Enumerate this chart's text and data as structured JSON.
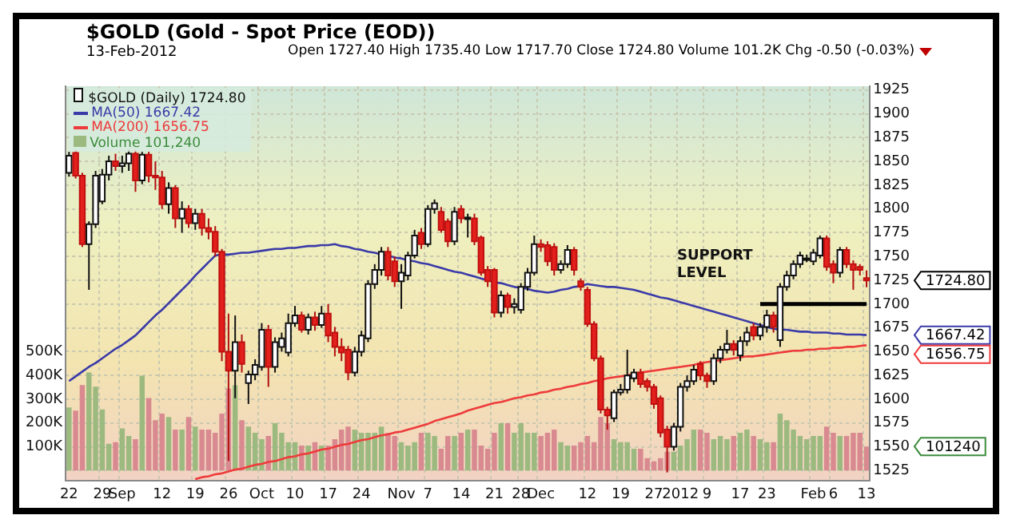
{
  "chart_data": {
    "type": "candlestick",
    "title": "$GOLD (Gold - Spot Price (EOD))",
    "subtitle": "Open 1727.40 High 1735.40 Low 1717.70 Close 1724.80 Volume 101.2K Chg -0.50 (-0.03%)",
    "annotations": [
      "13-Feb-2012",
      "SUPPORT LEVEL",
      "1724.80",
      "1667.42",
      "1656.75",
      "101240"
    ],
    "categories": [
      "22",
      null,
      null,
      null,
      null,
      "29",
      null,
      null,
      "Sep",
      null,
      null,
      null,
      null,
      null,
      "12",
      null,
      null,
      null,
      null,
      "19",
      null,
      null,
      null,
      null,
      "26",
      null,
      null,
      null,
      null,
      "Oct",
      null,
      null,
      null,
      null,
      "10",
      null,
      null,
      null,
      null,
      "17",
      null,
      null,
      null,
      null,
      "24",
      null,
      null,
      null,
      null,
      null,
      "Nov",
      null,
      null,
      null,
      "7",
      null,
      null,
      null,
      null,
      "14",
      null,
      null,
      null,
      null,
      "21",
      null,
      null,
      null,
      "28",
      null,
      null,
      "Dec",
      null,
      null,
      null,
      null,
      null,
      null,
      "12",
      null,
      null,
      null,
      null,
      "19",
      null,
      null,
      null,
      null,
      "27",
      null,
      null,
      null,
      "2012",
      null,
      null,
      null,
      "9",
      null,
      null,
      null,
      null,
      "17",
      null,
      null,
      null,
      "23",
      null,
      null,
      null,
      null,
      null,
      null,
      "Feb",
      null,
      null,
      "6",
      null,
      null,
      null,
      null,
      "13"
    ],
    "ylim": [
      1514,
      1929
    ],
    "yticks": [
      1525,
      1550,
      1575,
      1600,
      1625,
      1650,
      1675,
      1700,
      1725,
      1750,
      1775,
      1800,
      1825,
      1850,
      1875,
      1900,
      1925
    ],
    "y2lim": [
      -44,
      1616
    ],
    "y2ticks": [
      {
        "value": 100,
        "label": "100K"
      },
      {
        "value": 200,
        "label": "200K"
      },
      {
        "value": 300,
        "label": "300K"
      },
      {
        "value": 400,
        "label": "400K"
      },
      {
        "value": 500,
        "label": "500K"
      }
    ],
    "grid": true,
    "legend": "top left",
    "series": [
      {
        "name": "$GOLD (Daily) 1724.80",
        "ohlc": [
          [
            1838,
            1860,
            1834,
            1856
          ],
          [
            1859,
            1862,
            1832,
            1835
          ],
          [
            1835,
            1838,
            1760,
            1763
          ],
          [
            1763,
            1787,
            1715,
            1784
          ],
          [
            1784,
            1840,
            1780,
            1835
          ],
          [
            1808,
            1842,
            1805,
            1836
          ],
          [
            1836,
            1856,
            1830,
            1850
          ],
          [
            1850,
            1858,
            1840,
            1845
          ],
          [
            1845,
            1856,
            1838,
            1848
          ],
          [
            1848,
            1862,
            1840,
            1858
          ],
          [
            1858,
            1862,
            1818,
            1830
          ],
          [
            1830,
            1860,
            1826,
            1857
          ],
          [
            1857,
            1860,
            1828,
            1835
          ],
          [
            1835,
            1850,
            1820,
            1833
          ],
          [
            1833,
            1840,
            1800,
            1805
          ],
          [
            1805,
            1828,
            1795,
            1822
          ],
          [
            1822,
            1825,
            1780,
            1790
          ],
          [
            1790,
            1808,
            1775,
            1800
          ],
          [
            1800,
            1804,
            1780,
            1785
          ],
          [
            1785,
            1800,
            1778,
            1795
          ],
          [
            1795,
            1800,
            1772,
            1780
          ],
          [
            1780,
            1790,
            1768,
            1776
          ],
          [
            1776,
            1782,
            1750,
            1755
          ],
          [
            1755,
            1758,
            1640,
            1650
          ],
          [
            1650,
            1690,
            1535,
            1630
          ],
          [
            1630,
            1688,
            1601,
            1660
          ],
          [
            1660,
            1668,
            1628,
            1637
          ],
          [
            1617,
            1630,
            1595,
            1626
          ],
          [
            1626,
            1642,
            1620,
            1636
          ],
          [
            1634,
            1680,
            1630,
            1673
          ],
          [
            1673,
            1678,
            1613,
            1634
          ],
          [
            1634,
            1665,
            1628,
            1660
          ],
          [
            1655,
            1670,
            1650,
            1664
          ],
          [
            1649,
            1690,
            1645,
            1680
          ],
          [
            1680,
            1698,
            1676,
            1688
          ],
          [
            1688,
            1692,
            1670,
            1673
          ],
          [
            1673,
            1690,
            1668,
            1686
          ],
          [
            1686,
            1692,
            1672,
            1678
          ],
          [
            1678,
            1698,
            1675,
            1690
          ],
          [
            1690,
            1700,
            1660,
            1667
          ],
          [
            1670,
            1676,
            1645,
            1655
          ],
          [
            1655,
            1664,
            1640,
            1649
          ],
          [
            1652,
            1656,
            1620,
            1628
          ],
          [
            1628,
            1655,
            1624,
            1650
          ],
          [
            1650,
            1672,
            1645,
            1667
          ],
          [
            1664,
            1725,
            1660,
            1721
          ],
          [
            1721,
            1742,
            1716,
            1736
          ],
          [
            1736,
            1760,
            1730,
            1755
          ],
          [
            1755,
            1760,
            1725,
            1730
          ],
          [
            1745,
            1750,
            1718,
            1724
          ],
          [
            1724,
            1742,
            1695,
            1733
          ],
          [
            1730,
            1755,
            1725,
            1751
          ],
          [
            1751,
            1778,
            1748,
            1772
          ],
          [
            1775,
            1780,
            1758,
            1763
          ],
          [
            1763,
            1804,
            1760,
            1800
          ],
          [
            1800,
            1810,
            1795,
            1806
          ],
          [
            1797,
            1802,
            1775,
            1778
          ],
          [
            1787,
            1790,
            1760,
            1766
          ],
          [
            1766,
            1802,
            1762,
            1797
          ],
          [
            1800,
            1804,
            1785,
            1790
          ],
          [
            1790,
            1795,
            1770,
            1791
          ],
          [
            1790,
            1795,
            1762,
            1766
          ],
          [
            1770,
            1772,
            1730,
            1733
          ],
          [
            1736,
            1740,
            1718,
            1724
          ],
          [
            1736,
            1738,
            1686,
            1691
          ],
          [
            1691,
            1714,
            1686,
            1709
          ],
          [
            1709,
            1712,
            1690,
            1697
          ],
          [
            1697,
            1706,
            1690,
            1700
          ],
          [
            1694,
            1722,
            1690,
            1718
          ],
          [
            1718,
            1738,
            1714,
            1733
          ],
          [
            1733,
            1772,
            1730,
            1763
          ],
          [
            1763,
            1768,
            1755,
            1760
          ],
          [
            1762,
            1766,
            1740,
            1745
          ],
          [
            1760,
            1764,
            1730,
            1736
          ],
          [
            1736,
            1746,
            1732,
            1742
          ],
          [
            1742,
            1762,
            1738,
            1757
          ],
          [
            1757,
            1760,
            1730,
            1736
          ],
          [
            1724,
            1727,
            1714,
            1718
          ],
          [
            1715,
            1718,
            1676,
            1679
          ],
          [
            1679,
            1682,
            1640,
            1643
          ],
          [
            1643,
            1646,
            1585,
            1589
          ],
          [
            1589,
            1592,
            1568,
            1583
          ],
          [
            1580,
            1610,
            1576,
            1607
          ],
          [
            1607,
            1616,
            1604,
            1610
          ],
          [
            1610,
            1652,
            1606,
            1625
          ],
          [
            1622,
            1632,
            1618,
            1628
          ],
          [
            1628,
            1632,
            1612,
            1616
          ],
          [
            1619,
            1622,
            1608,
            1613
          ],
          [
            1613,
            1616,
            1590,
            1595
          ],
          [
            1601,
            1604,
            1560,
            1565
          ],
          [
            1568,
            1572,
            1523,
            1550
          ],
          [
            1550,
            1575,
            1546,
            1571
          ],
          [
            1571,
            1617,
            1566,
            1613
          ],
          [
            1613,
            1625,
            1608,
            1619
          ],
          [
            1619,
            1636,
            1615,
            1631
          ],
          [
            1637,
            1640,
            1620,
            1625
          ],
          [
            1625,
            1628,
            1612,
            1619
          ],
          [
            1619,
            1648,
            1615,
            1643
          ],
          [
            1643,
            1656,
            1638,
            1652
          ],
          [
            1652,
            1673,
            1648,
            1658
          ],
          [
            1658,
            1662,
            1646,
            1652
          ],
          [
            1646,
            1666,
            1640,
            1661
          ],
          [
            1661,
            1676,
            1656,
            1670
          ],
          [
            1676,
            1680,
            1662,
            1667
          ],
          [
            1667,
            1680,
            1662,
            1676
          ],
          [
            1676,
            1694,
            1670,
            1688
          ],
          [
            1688,
            1692,
            1670,
            1676
          ],
          [
            1662,
            1722,
            1655,
            1718
          ],
          [
            1718,
            1735,
            1714,
            1730
          ],
          [
            1730,
            1746,
            1726,
            1742
          ],
          [
            1742,
            1755,
            1738,
            1751
          ],
          [
            1748,
            1752,
            1744,
            1748
          ],
          [
            1745,
            1758,
            1741,
            1754
          ],
          [
            1751,
            1772,
            1748,
            1769
          ],
          [
            1769,
            1772,
            1735,
            1739
          ],
          [
            1742,
            1746,
            1722,
            1733
          ],
          [
            1733,
            1760,
            1728,
            1757
          ],
          [
            1757,
            1760,
            1738,
            1742
          ],
          [
            1742,
            1746,
            1715,
            1736
          ],
          [
            1739,
            1742,
            1730,
            1736
          ],
          [
            1727.4,
            1735.4,
            1717.7,
            1724.8
          ]
        ]
      },
      {
        "name": "MA(50) 1667.42",
        "type": "line",
        "color": "#3a3aa8",
        "values": [
          1619,
          1624,
          1629,
          1634,
          1638,
          1643,
          1648,
          1653,
          1657,
          1662,
          1667,
          1674,
          1681,
          1688,
          1694,
          1701,
          1708,
          1715,
          1722,
          1730,
          1737,
          1744,
          1751,
          1752,
          1752,
          1753,
          1754,
          1754,
          1755,
          1756,
          1757,
          1758,
          1758,
          1759,
          1759,
          1760,
          1761,
          1761,
          1762,
          1762,
          1763,
          1761,
          1760,
          1758,
          1757,
          1755,
          1754,
          1752,
          1751,
          1749,
          1748,
          1746,
          1745,
          1743,
          1742,
          1740,
          1738,
          1736,
          1734,
          1733,
          1731,
          1729,
          1727,
          1725,
          1723,
          1722,
          1720,
          1718,
          1717,
          1716,
          1714,
          1713,
          1712,
          1713,
          1715,
          1716,
          1718,
          1719,
          1721,
          1720,
          1719,
          1718,
          1718,
          1717,
          1716,
          1715,
          1713,
          1711,
          1709,
          1707,
          1706,
          1704,
          1702,
          1700,
          1698,
          1696,
          1694,
          1692,
          1690,
          1688,
          1686,
          1684,
          1682,
          1680,
          1678,
          1676,
          1674,
          1673,
          1673,
          1672,
          1671,
          1671,
          1670,
          1670,
          1670,
          1669,
          1669,
          1668,
          1668,
          1668,
          1667.42
        ]
      },
      {
        "name": "MA(200) 1656.75",
        "type": "line",
        "color": "#ee3b3b",
        "values": [
          null,
          null,
          null,
          null,
          null,
          null,
          null,
          null,
          null,
          null,
          null,
          null,
          null,
          null,
          null,
          null,
          null,
          null,
          null,
          1516,
          1518,
          1519,
          1521,
          1522,
          1524,
          1526,
          1527,
          1529,
          1531,
          1532,
          1534,
          1535,
          1537,
          1539,
          1540,
          1542,
          1543,
          1545,
          1547,
          1548,
          1550,
          1552,
          1553,
          1555,
          1557,
          1558,
          1560,
          1562,
          1563,
          1565,
          1566,
          1568,
          1570,
          1572,
          1574,
          1577,
          1579,
          1581,
          1583,
          1585,
          1588,
          1590,
          1592,
          1594,
          1596,
          1597,
          1599,
          1601,
          1602,
          1604,
          1605,
          1607,
          1608,
          1610,
          1611,
          1613,
          1614,
          1616,
          1617,
          1619,
          1620,
          1622,
          1623,
          1624,
          1625,
          1627,
          1628,
          1629,
          1630,
          1631,
          1632,
          1633,
          1634,
          1635,
          1636,
          1638,
          1639,
          1640,
          1641,
          1642,
          1643,
          1644,
          1645,
          1645,
          1646,
          1647,
          1648,
          1649,
          1650,
          1651,
          1651,
          1652,
          1652,
          1653,
          1653,
          1654,
          1654,
          1655,
          1655,
          1656,
          1656.75
        ]
      },
      {
        "name": "Volume 101,240",
        "type": "bar",
        "axis": "y2",
        "color": "#3c8c3c",
        "values": [
          265,
          252,
          359,
          412,
          353,
          257,
          113,
          119,
          177,
          145,
          132,
          399,
          305,
          212,
          239,
          225,
          172,
          172,
          225,
          185,
          172,
          172,
          159,
          239,
          345,
          359,
          212,
          185,
          159,
          132,
          145,
          199,
          159,
          119,
          119,
          105,
          105,
          119,
          105,
          105,
          132,
          172,
          185,
          172,
          159,
          159,
          159,
          185,
          159,
          145,
          119,
          105,
          119,
          159,
          159,
          145,
          92,
          145,
          145,
          159,
          172,
          172,
          105,
          92,
          159,
          199,
          199,
          159,
          199,
          159,
          159,
          145,
          159,
          172,
          119,
          105,
          105,
          119,
          145,
          119,
          225,
          199,
          132,
          119,
          119,
          92,
          92,
          52,
          39,
          52,
          79,
          79,
          105,
          132,
          172,
          172,
          159,
          132,
          145,
          132,
          145,
          159,
          172,
          145,
          132,
          119,
          119,
          239,
          212,
          172,
          145,
          132,
          145,
          145,
          185,
          159,
          145,
          145,
          159,
          159,
          101.24
        ],
        "colors": [
          "#9cba7f",
          "#d98a90",
          "#d98a90",
          "#9cba7f",
          "#9cba7f",
          "#9cba7f",
          "#9cba7f",
          "#d98a90",
          "#9cba7f",
          "#9cba7f",
          "#d98a90",
          "#9cba7f",
          "#d98a90",
          "#d98a90",
          "#d98a90",
          "#9cba7f",
          "#d98a90",
          "#9cba7f",
          "#d98a90",
          "#9cba7f",
          "#d98a90",
          "#d98a90",
          "#d98a90",
          "#d98a90",
          "#d98a90",
          "#9cba7f",
          "#d98a90",
          "#9cba7f",
          "#9cba7f",
          "#9cba7f",
          "#d98a90",
          "#9cba7f",
          "#9cba7f",
          "#9cba7f",
          "#9cba7f",
          "#d98a90",
          "#9cba7f",
          "#d98a90",
          "#9cba7f",
          "#d98a90",
          "#d98a90",
          "#d98a90",
          "#d98a90",
          "#9cba7f",
          "#9cba7f",
          "#9cba7f",
          "#9cba7f",
          "#9cba7f",
          "#d98a90",
          "#d98a90",
          "#9cba7f",
          "#9cba7f",
          "#9cba7f",
          "#d98a90",
          "#9cba7f",
          "#9cba7f",
          "#d98a90",
          "#d98a90",
          "#9cba7f",
          "#d98a90",
          "#9cba7f",
          "#d98a90",
          "#d98a90",
          "#d98a90",
          "#d98a90",
          "#9cba7f",
          "#d98a90",
          "#9cba7f",
          "#9cba7f",
          "#9cba7f",
          "#9cba7f",
          "#d98a90",
          "#d98a90",
          "#d98a90",
          "#9cba7f",
          "#9cba7f",
          "#d98a90",
          "#d98a90",
          "#d98a90",
          "#d98a90",
          "#d98a90",
          "#d98a90",
          "#9cba7f",
          "#9cba7f",
          "#9cba7f",
          "#9cba7f",
          "#d98a90",
          "#d98a90",
          "#d98a90",
          "#d98a90",
          "#d98a90",
          "#9cba7f",
          "#9cba7f",
          "#9cba7f",
          "#9cba7f",
          "#d98a90",
          "#d98a90",
          "#9cba7f",
          "#9cba7f",
          "#9cba7f",
          "#d98a90",
          "#9cba7f",
          "#9cba7f",
          "#d98a90",
          "#9cba7f",
          "#9cba7f",
          "#d98a90",
          "#9cba7f",
          "#9cba7f",
          "#9cba7f",
          "#9cba7f",
          "#9cba7f",
          "#9cba7f",
          "#9cba7f",
          "#d98a90",
          "#d98a90",
          "#9cba7f",
          "#d98a90",
          "#d98a90",
          "#d98a90",
          "#d98a90"
        ]
      },
      {
        "type": "line",
        "color": "#000000",
        "values": [
          null,
          null,
          null,
          null,
          null,
          null,
          null,
          null,
          null,
          null,
          null,
          null,
          null,
          null,
          null,
          null,
          null,
          null,
          null,
          null,
          null,
          null,
          null,
          null,
          null,
          null,
          null,
          null,
          null,
          null,
          null,
          null,
          null,
          null,
          null,
          null,
          null,
          null,
          null,
          null,
          null,
          null,
          null,
          null,
          null,
          null,
          null,
          null,
          null,
          null,
          null,
          null,
          null,
          null,
          null,
          null,
          null,
          null,
          null,
          null,
          null,
          null,
          null,
          null,
          null,
          null,
          null,
          null,
          null,
          null,
          null,
          null,
          null,
          null,
          null,
          null,
          null,
          null,
          null,
          null,
          null,
          null,
          null,
          null,
          null,
          null,
          null,
          null,
          null,
          null,
          null,
          null,
          null,
          null,
          null,
          null,
          null,
          null,
          null,
          null,
          null,
          null,
          null,
          null,
          1700,
          1700,
          1700,
          1700,
          1700,
          1700,
          1700,
          1700,
          1700,
          1700,
          1700,
          1700,
          1700,
          1700,
          1700,
          1700,
          1700
        ]
      }
    ]
  }
}
